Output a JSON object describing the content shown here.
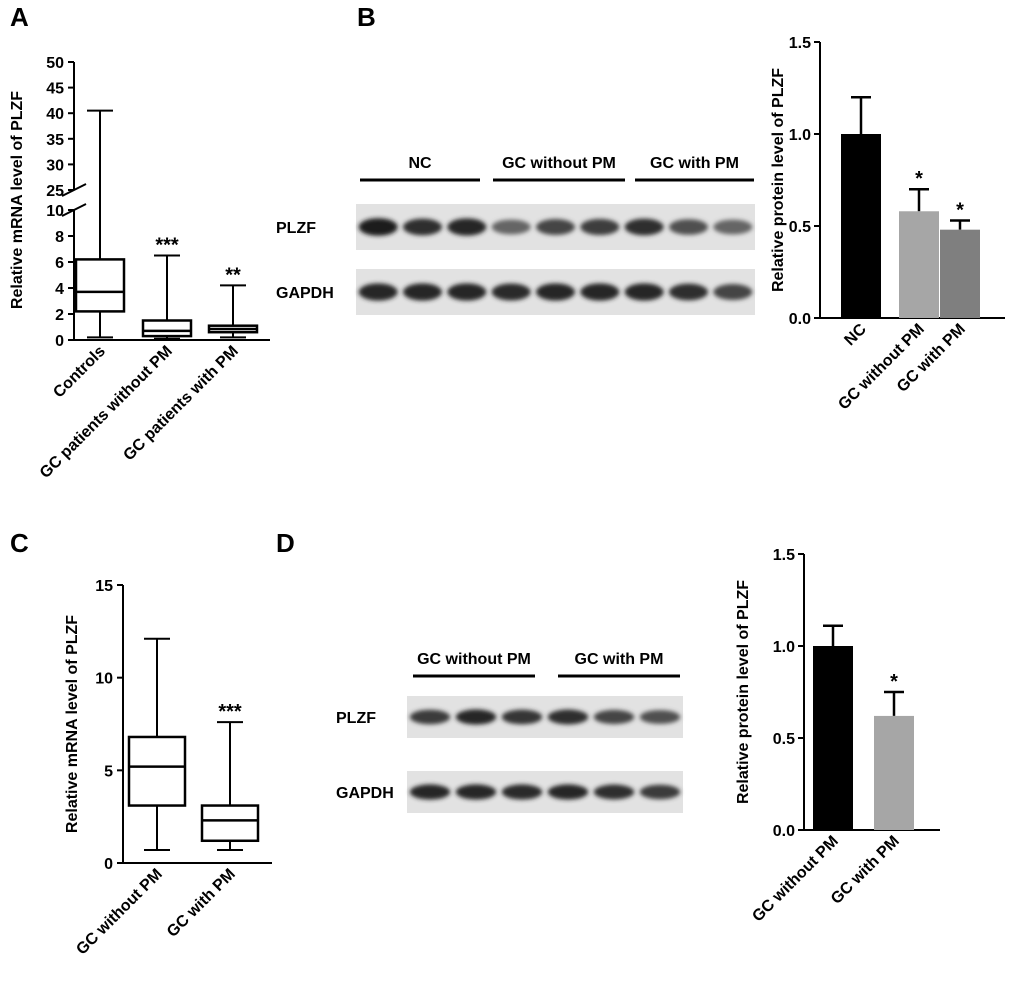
{
  "chart_data": [
    {
      "panel": "A",
      "type": "box",
      "ylabel": "Relative mRNA level of PLZF",
      "y_axis_break": [
        10,
        25
      ],
      "ylim": [
        0,
        50
      ],
      "yticks": [
        0,
        2,
        4,
        6,
        8,
        10,
        25,
        30,
        35,
        40,
        45,
        50
      ],
      "categories": [
        "Controls",
        "GC patients without PM",
        "GC patients with PM"
      ],
      "boxes": [
        {
          "min": 0.2,
          "q1": 2.2,
          "median": 3.7,
          "q3": 6.2,
          "max": 40.5,
          "significance": ""
        },
        {
          "min": 0.1,
          "q1": 0.3,
          "median": 0.7,
          "q3": 1.5,
          "max": 6.5,
          "significance": "***"
        },
        {
          "min": 0.2,
          "q1": 0.6,
          "median": 0.85,
          "q3": 1.1,
          "max": 4.2,
          "significance": "**"
        }
      ]
    },
    {
      "panel": "B",
      "type": "bar",
      "ylabel": "Relative protein level of PLZF",
      "ylim": [
        0,
        1.5
      ],
      "yticks": [
        "0.0",
        "0.5",
        "1.0",
        "1.5"
      ],
      "categories": [
        "NC",
        "GC without PM",
        "GC with PM"
      ],
      "values": [
        1.0,
        0.58,
        0.48
      ],
      "errors": [
        0.2,
        0.12,
        0.05
      ],
      "significance": [
        "",
        "*",
        "*"
      ],
      "colors": [
        "#000000",
        "#a6a6a6",
        "#7f7f7f"
      ]
    },
    {
      "panel": "C",
      "type": "box",
      "ylabel": "Relative mRNA level of PLZF",
      "ylim": [
        0,
        15
      ],
      "yticks": [
        0,
        5,
        10,
        15
      ],
      "categories": [
        "GC without PM",
        "GC with PM"
      ],
      "boxes": [
        {
          "min": 0.7,
          "q1": 3.1,
          "median": 5.2,
          "q3": 6.8,
          "max": 12.1,
          "significance": ""
        },
        {
          "min": 0.7,
          "q1": 1.2,
          "median": 2.3,
          "q3": 3.1,
          "max": 7.6,
          "significance": "***"
        }
      ]
    },
    {
      "panel": "D",
      "type": "bar",
      "ylabel": "Relative protein level of PLZF",
      "ylim": [
        0,
        1.5
      ],
      "yticks": [
        "0.0",
        "0.5",
        "1.0",
        "1.5"
      ],
      "categories": [
        "GC without PM",
        "GC with PM"
      ],
      "values": [
        1.0,
        0.62
      ],
      "errors": [
        0.11,
        0.13
      ],
      "significance": [
        "",
        "*"
      ],
      "colors": [
        "#000000",
        "#a6a6a6"
      ]
    }
  ],
  "blots": [
    {
      "panel": "B",
      "groups": [
        "NC",
        "GC without PM",
        "GC with PM"
      ],
      "rows": [
        {
          "label": "PLZF",
          "intensity": [
            0.95,
            0.85,
            0.9,
            0.6,
            0.75,
            0.78,
            0.85,
            0.7,
            0.6
          ]
        },
        {
          "label": "GAPDH",
          "intensity": [
            0.9,
            0.9,
            0.9,
            0.88,
            0.9,
            0.9,
            0.9,
            0.85,
            0.75
          ]
        }
      ]
    },
    {
      "panel": "D",
      "groups": [
        "GC without PM",
        "GC with PM"
      ],
      "rows": [
        {
          "label": "PLZF",
          "intensity": [
            0.8,
            0.9,
            0.82,
            0.85,
            0.75,
            0.7
          ]
        },
        {
          "label": "GAPDH",
          "intensity": [
            0.9,
            0.9,
            0.88,
            0.9,
            0.85,
            0.8
          ]
        }
      ]
    }
  ]
}
